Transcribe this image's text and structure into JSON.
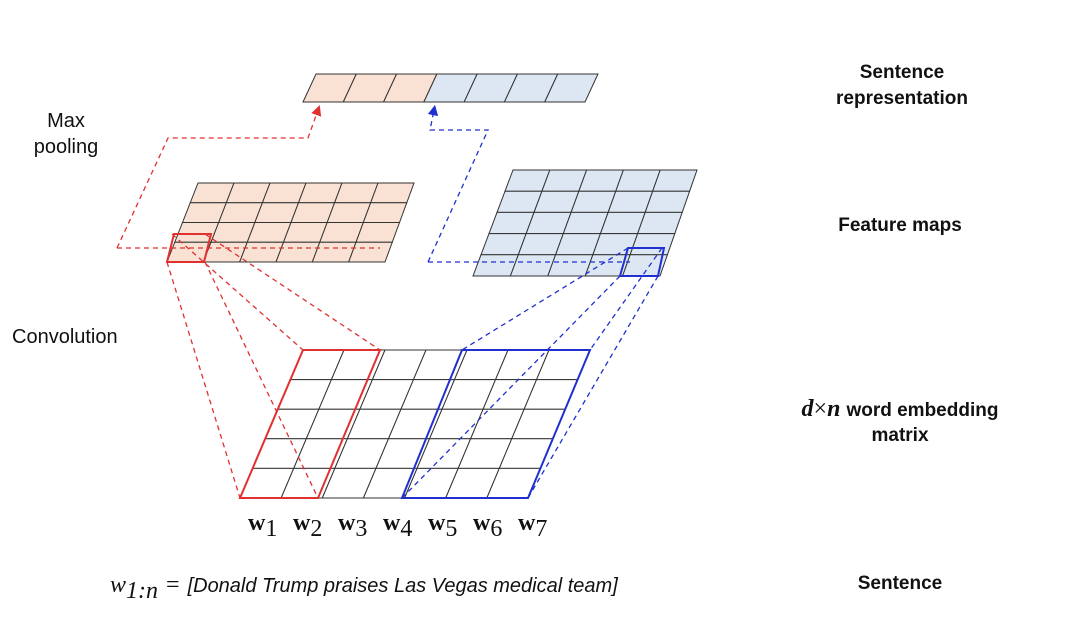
{
  "left_labels": {
    "max_pooling": [
      "Max",
      "pooling"
    ],
    "convolution": "Convolution"
  },
  "right_labels": {
    "sentence_representation": [
      "Sentence",
      "representation"
    ],
    "feature_maps": "Feature maps",
    "embedding_matrix": {
      "dimension_d": "d",
      "times": "×",
      "dimension_n": "n",
      "lines": [
        "word embedding",
        "matrix"
      ]
    },
    "sentence": "Sentence"
  },
  "words": [
    {
      "base": "w",
      "sub": "1"
    },
    {
      "base": "w",
      "sub": "2"
    },
    {
      "base": "w",
      "sub": "3"
    },
    {
      "base": "w",
      "sub": "4"
    },
    {
      "base": "w",
      "sub": "5"
    },
    {
      "base": "w",
      "sub": "6"
    },
    {
      "base": "w",
      "sub": "7"
    }
  ],
  "formula": {
    "var": "w",
    "sub": "1:n",
    "equals": "=",
    "text": "[Donald Trump praises Las Vegas medical team]"
  }
}
